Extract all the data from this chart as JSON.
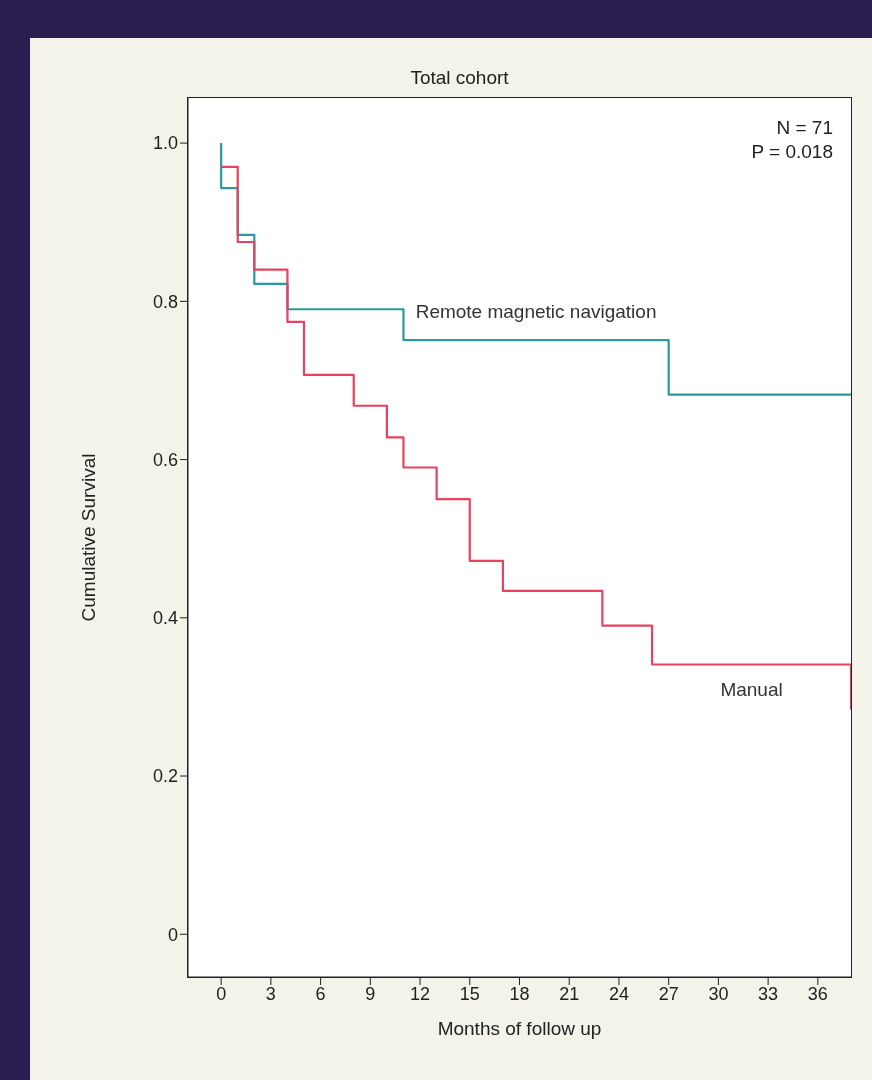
{
  "chart_data": {
    "type": "step",
    "title": "Total cohort",
    "xlabel": "Months of follow up",
    "ylabel": "Cumulative Survival",
    "xlim": [
      -2,
      38
    ],
    "xticks": [
      0,
      3,
      6,
      9,
      12,
      15,
      18,
      21,
      24,
      27,
      30,
      33,
      36
    ],
    "ylim": [
      -0.054,
      1.057
    ],
    "yticks": [
      {
        "value": 0,
        "label": "0"
      },
      {
        "value": 0.2,
        "label": "0.2"
      },
      {
        "value": 0.4,
        "label": "0.4"
      },
      {
        "value": 0.6,
        "label": "0.6"
      },
      {
        "value": 0.8,
        "label": "0.8"
      },
      {
        "value": 1,
        "label": "1.0"
      }
    ],
    "marker": "none",
    "line_style": "solid",
    "annotations": [
      "N = 71",
      "P = 0.018"
    ],
    "series": [
      {
        "name": "Remote magnetic navigation",
        "color": "#2a9aa0",
        "x": [
          0,
          0,
          1,
          2,
          4,
          11,
          27,
          38
        ],
        "values": [
          1.0,
          0.943,
          0.884,
          0.822,
          0.79,
          0.751,
          0.682,
          0.682
        ]
      },
      {
        "name": "Manual",
        "color": "#e8425e",
        "x": [
          0,
          1,
          2,
          4,
          5,
          8,
          10,
          11,
          13,
          15,
          17,
          23,
          26,
          38,
          38
        ],
        "values": [
          0.97,
          0.875,
          0.84,
          0.774,
          0.707,
          0.668,
          0.628,
          0.59,
          0.55,
          0.472,
          0.434,
          0.39,
          0.341,
          0.341,
          0.284
        ]
      }
    ]
  }
}
